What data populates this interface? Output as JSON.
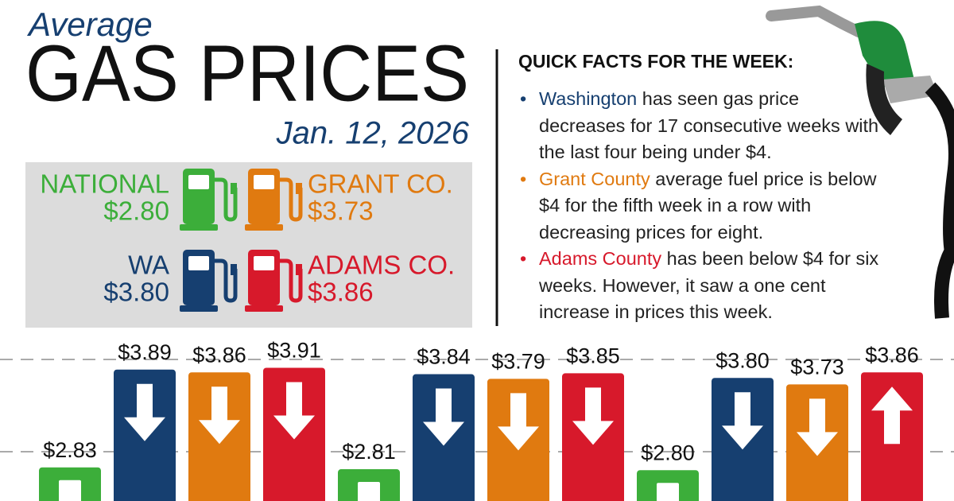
{
  "header": {
    "kicker": "Average",
    "title": "GAS PRICES",
    "date": "Jan. 12, 2026"
  },
  "summary": [
    {
      "label": "NATIONAL",
      "price": "$2.80",
      "color": "#3cae3a"
    },
    {
      "label": "GRANT CO.",
      "price": "$3.73",
      "color": "#e07a10"
    },
    {
      "label": "WA",
      "price": "$3.80",
      "color": "#163f70"
    },
    {
      "label": "ADAMS CO.",
      "price": "$3.86",
      "color": "#d7192b"
    }
  ],
  "facts": {
    "title": "QUICK FACTS FOR THE WEEK:",
    "items": [
      {
        "highlight": "Washington",
        "text": " has seen gas price decreases for 17 consecutive weeks with the last four being under $4.",
        "color": "#163f70"
      },
      {
        "highlight": "Grant County",
        "text": " average fuel price is below $4 for the fifth week in a row with decreasing prices for eight.",
        "color": "#e07a10"
      },
      {
        "highlight": "Adams County",
        "text": " has been below $4 for six weeks. However, it saw a one cent increase in prices this week.",
        "color": "#d7192b"
      }
    ]
  },
  "chart_data": {
    "type": "bar",
    "categories": [
      null,
      null,
      null,
      null,
      null,
      null,
      null,
      null,
      null,
      null,
      null,
      null
    ],
    "values": [
      2.83,
      3.89,
      3.86,
      3.91,
      2.81,
      3.84,
      3.79,
      3.85,
      2.8,
      3.8,
      3.73,
      3.86
    ],
    "value_labels": [
      "$2.83",
      "$3.89",
      "$3.86",
      "$3.91",
      "$2.81",
      "$3.84",
      "$3.79",
      "$3.85",
      "$2.80",
      "$3.80",
      "$3.73",
      "$3.86"
    ],
    "colors": [
      "#3cae3a",
      "#163f70",
      "#e07a10",
      "#d7192b",
      "#3cae3a",
      "#163f70",
      "#e07a10",
      "#d7192b",
      "#3cae3a",
      "#163f70",
      "#e07a10",
      "#d7192b"
    ],
    "directions": [
      "none",
      "down",
      "down",
      "down",
      "none",
      "down",
      "down",
      "down",
      "none",
      "down",
      "down",
      "up"
    ],
    "ylim": [
      2.5,
      4.25
    ],
    "yticks": [
      3,
      4
    ],
    "grid": true
  }
}
